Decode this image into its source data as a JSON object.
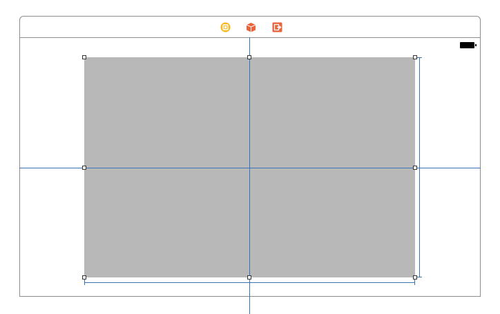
{
  "scene_dock": {
    "icons": [
      {
        "name": "view-controller-icon",
        "color": "#f5b820"
      },
      {
        "name": "first-responder-icon",
        "color": "#e8643c"
      },
      {
        "name": "exit-icon",
        "color": "#e8643c"
      }
    ]
  },
  "status_bar": {
    "icon": "battery-icon"
  },
  "canvas": {
    "view_color": "#b8b8b8",
    "guide_color": "#3672b5"
  }
}
